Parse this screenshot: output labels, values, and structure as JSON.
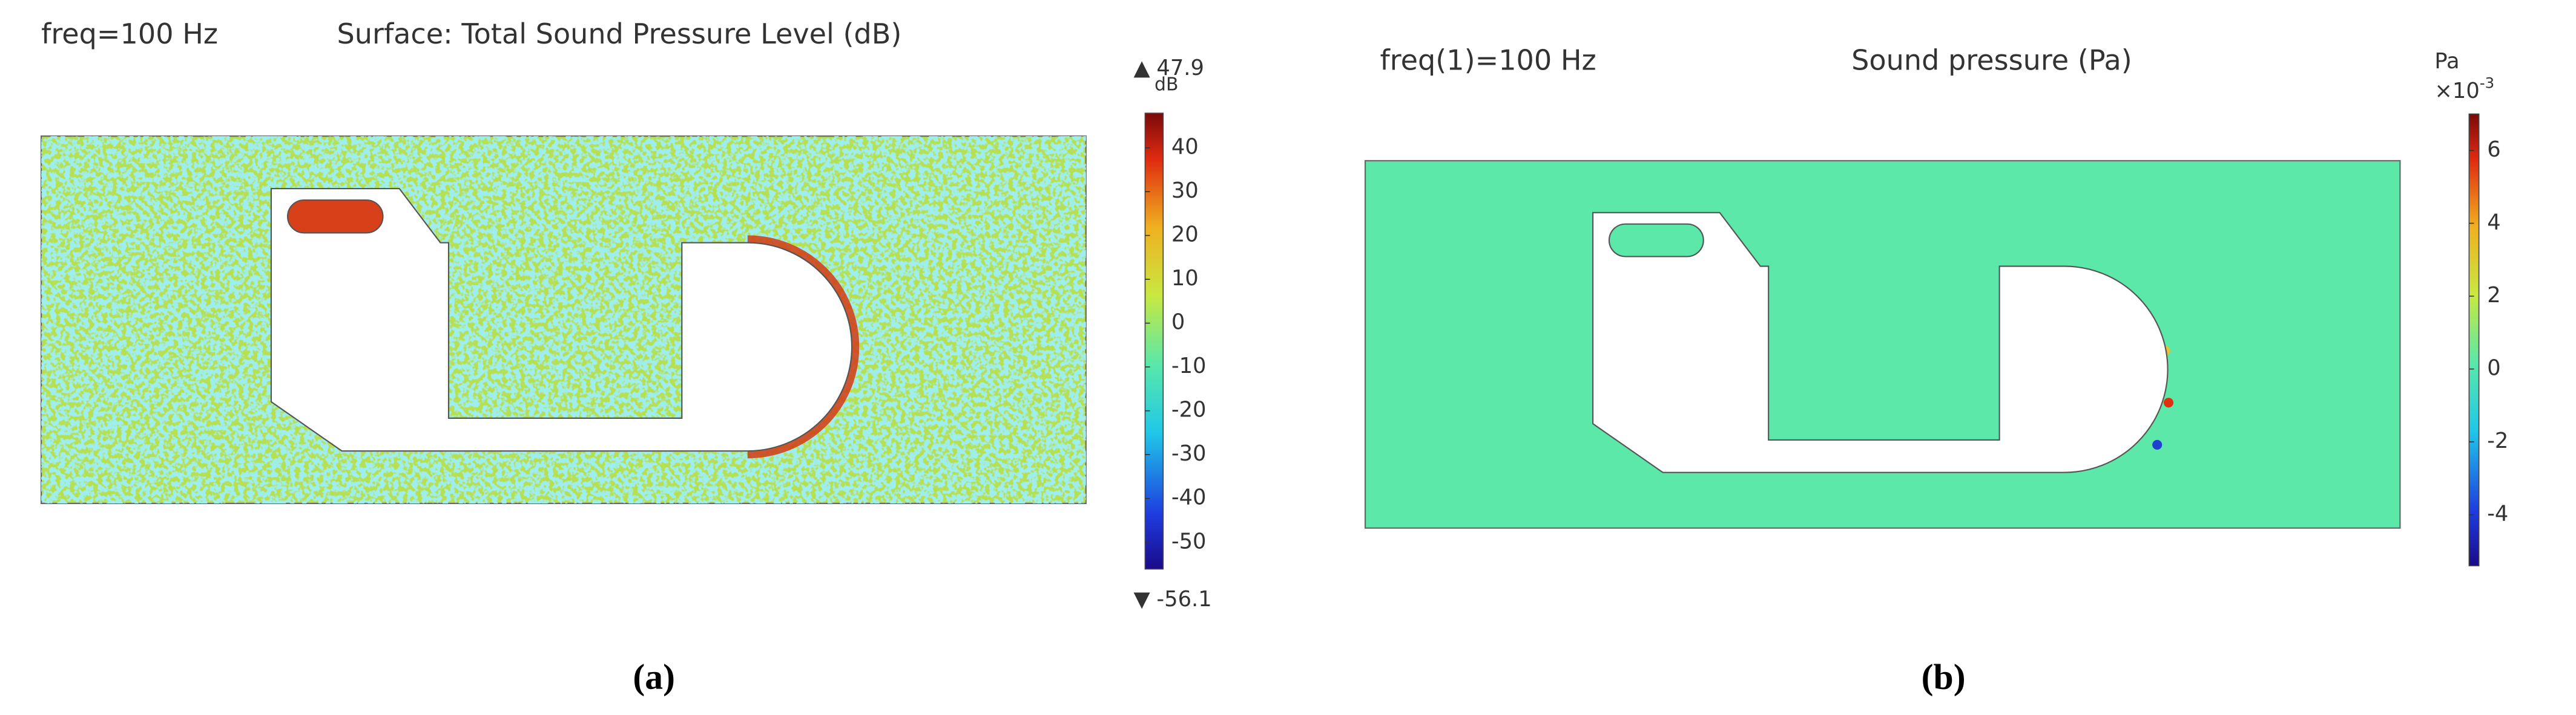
{
  "panels": [
    {
      "freq_label": "freq=100 Hz",
      "title": "Surface: Total Sound Pressure Level (dB)",
      "colorbar": {
        "unit": "dB",
        "clim": [
          -56.1,
          47.9
        ],
        "ticks": [
          40,
          30,
          20,
          10,
          0,
          -10,
          -20,
          -30,
          -40,
          -50
        ]
      },
      "caption": "(a)"
    },
    {
      "freq_label": "freq(1)=100 Hz",
      "title": "Sound pressure (Pa)",
      "colorbar": {
        "unit": "Pa",
        "multiplier": "×10",
        "exponent": "-3",
        "clim": [
          -5.4,
          7.0
        ],
        "ticks": [
          6,
          4,
          2,
          0,
          -2,
          -4
        ]
      },
      "caption": "(b)"
    }
  ]
}
